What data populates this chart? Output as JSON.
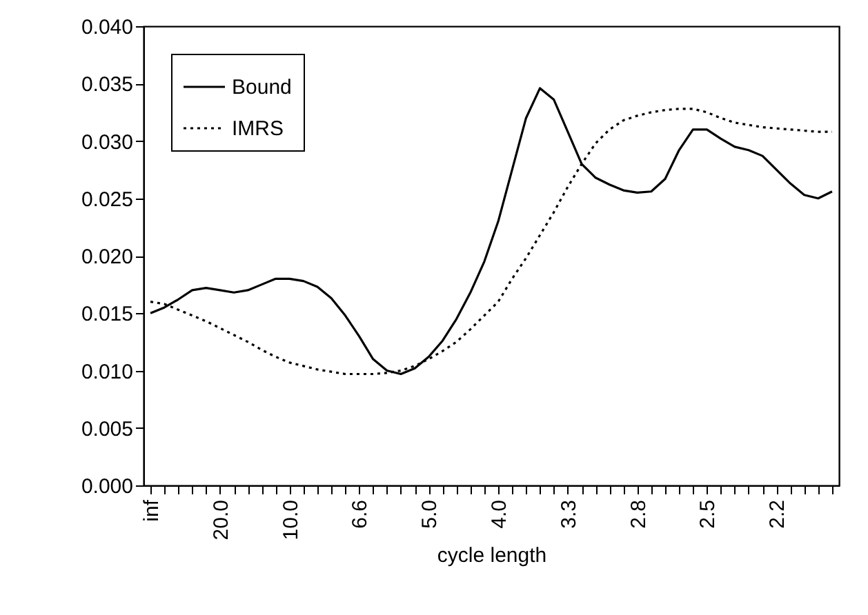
{
  "chart_data": {
    "type": "line",
    "xlabel": "cycle length",
    "categories": [
      "inf",
      null,
      null,
      null,
      null,
      "20.0",
      null,
      null,
      null,
      null,
      "10.0",
      null,
      null,
      null,
      null,
      "6.6",
      null,
      null,
      null,
      null,
      "5.0",
      null,
      null,
      null,
      null,
      "4.0",
      null,
      null,
      null,
      null,
      "3.3",
      null,
      null,
      null,
      null,
      "2.8",
      null,
      null,
      null,
      null,
      "2.5",
      null,
      null,
      null,
      null,
      "2.2",
      null,
      null,
      null,
      null
    ],
    "series": [
      {
        "name": "Bound",
        "color": "#000000",
        "line_style": "solid",
        "values": [
          0.015,
          0.0155,
          0.0162,
          0.017,
          0.0172,
          0.017,
          0.0168,
          0.017,
          0.0175,
          0.018,
          0.018,
          0.0178,
          0.0173,
          0.0163,
          0.0148,
          0.013,
          0.011,
          0.01,
          0.0097,
          0.0102,
          0.0112,
          0.0126,
          0.0145,
          0.0168,
          0.0195,
          0.023,
          0.0275,
          0.032,
          0.0346,
          0.0336,
          0.0308,
          0.028,
          0.0268,
          0.0262,
          0.0257,
          0.0255,
          0.0256,
          0.0267,
          0.0292,
          0.031,
          0.031,
          0.0302,
          0.0295,
          0.0292,
          0.0287,
          0.0275,
          0.0263,
          0.0253,
          0.025,
          0.0256
        ]
      },
      {
        "name": "IMRS",
        "color": "#000000",
        "line_style": "dotted",
        "values": [
          0.016,
          0.0158,
          0.0153,
          0.0148,
          0.0143,
          0.0137,
          0.0131,
          0.0125,
          0.0118,
          0.0112,
          0.0107,
          0.0104,
          0.0101,
          0.0099,
          0.0097,
          0.0097,
          0.0097,
          0.0098,
          0.01,
          0.0104,
          0.011,
          0.0117,
          0.0125,
          0.0136,
          0.0148,
          0.016,
          0.018,
          0.0198,
          0.0218,
          0.0238,
          0.026,
          0.028,
          0.0298,
          0.031,
          0.0318,
          0.0322,
          0.0325,
          0.0327,
          0.0328,
          0.0328,
          0.0325,
          0.032,
          0.0316,
          0.0314,
          0.0312,
          0.0311,
          0.031,
          0.0309,
          0.0308,
          0.0308
        ]
      }
    ],
    "ylim": [
      0,
      0.04
    ],
    "yticks": [
      {
        "value": 0,
        "label": "0.000"
      },
      {
        "value": 0.005,
        "label": "0.005"
      },
      {
        "value": 0.01,
        "label": "0.010"
      },
      {
        "value": 0.015,
        "label": "0.015"
      },
      {
        "value": 0.02,
        "label": "0.020"
      },
      {
        "value": 0.025,
        "label": "0.025"
      },
      {
        "value": 0.03,
        "label": "0.030"
      },
      {
        "value": 0.035,
        "label": "0.035"
      },
      {
        "value": 0.04,
        "label": "0.040"
      }
    ],
    "grid": false,
    "legend": "top left",
    "marker": "none"
  }
}
